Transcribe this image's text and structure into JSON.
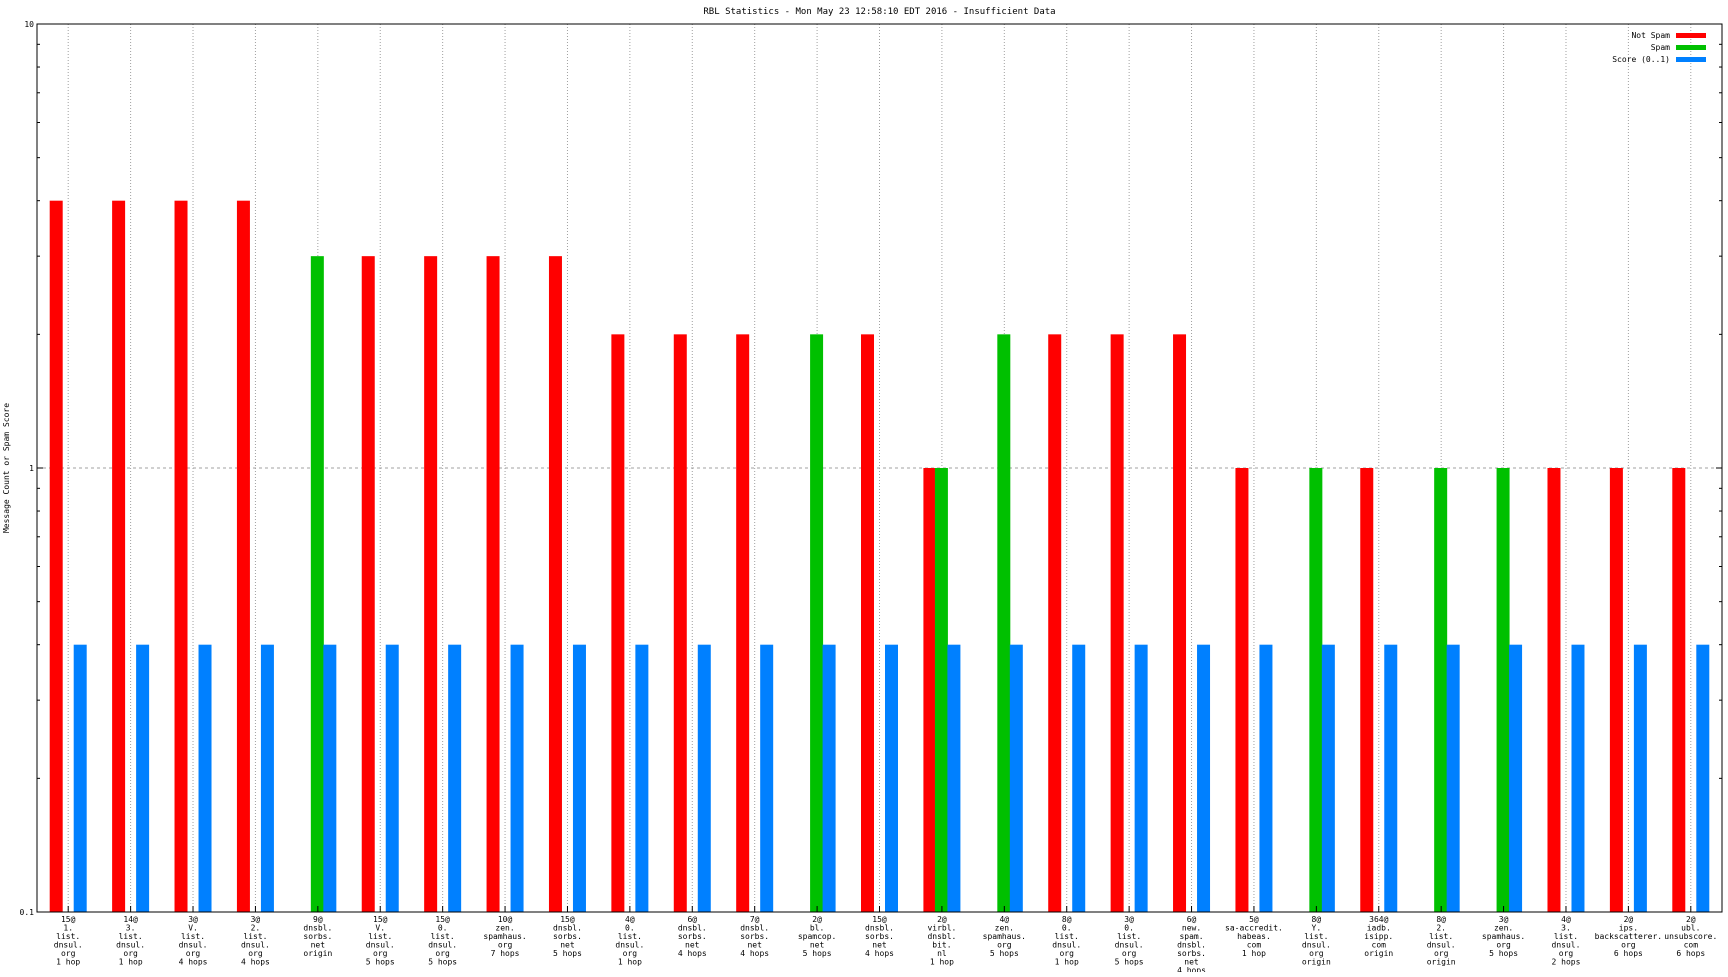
{
  "chart_data": {
    "type": "bar",
    "title": "RBL Statistics - Mon May 23 12:58:10 EDT 2016 - Insufficient Data",
    "ylabel": "Message Count or Spam Score",
    "xlabel": "",
    "yscale": "log",
    "ylim": [
      0.1,
      10
    ],
    "yticks": [
      {
        "value": 0.1,
        "label": "0.1"
      },
      {
        "value": 1,
        "label": "1"
      },
      {
        "value": 10,
        "label": "10"
      }
    ],
    "grid": true,
    "legend_position": "top-right",
    "categories": [
      [
        "15@",
        "1.",
        "list.",
        "dnsul.",
        "org",
        "1 hop"
      ],
      [
        "14@",
        "3.",
        "list.",
        "dnsul.",
        "org",
        "1 hop"
      ],
      [
        "3@",
        "V.",
        "list.",
        "dnsul.",
        "org",
        "4 hops"
      ],
      [
        "3@",
        "2.",
        "list.",
        "dnsul.",
        "org",
        "4 hops"
      ],
      [
        "9@",
        "dnsbl.",
        "sorbs.",
        "net",
        "origin"
      ],
      [
        "15@",
        "V.",
        "list.",
        "dnsul.",
        "org",
        "5 hops"
      ],
      [
        "15@",
        "0.",
        "list.",
        "dnsul.",
        "org",
        "5 hops"
      ],
      [
        "10@",
        "zen.",
        "spamhaus.",
        "org",
        "7 hops"
      ],
      [
        "15@",
        "dnsbl.",
        "sorbs.",
        "net",
        "5 hops"
      ],
      [
        "4@",
        "0.",
        "list.",
        "dnsul.",
        "org",
        "1 hop"
      ],
      [
        "6@",
        "dnsbl.",
        "sorbs.",
        "net",
        "4 hops"
      ],
      [
        "7@",
        "dnsbl.",
        "sorbs.",
        "net",
        "4 hops"
      ],
      [
        "2@",
        "bl.",
        "spamcop.",
        "net",
        "5 hops"
      ],
      [
        "15@",
        "dnsbl.",
        "sorbs.",
        "net",
        "4 hops"
      ],
      [
        "2@",
        "virbl.",
        "dnsbl.",
        "bit.",
        "nl",
        "1 hop"
      ],
      [
        "4@",
        "zen.",
        "spamhaus.",
        "org",
        "5 hops"
      ],
      [
        "8@",
        "0.",
        "list.",
        "dnsul.",
        "org",
        "1 hop"
      ],
      [
        "3@",
        "0.",
        "list.",
        "dnsul.",
        "org",
        "5 hops"
      ],
      [
        "6@",
        "new.",
        "spam.",
        "dnsbl.",
        "sorbs.",
        "net",
        "4 hops"
      ],
      [
        "5@",
        "sa-accredit.",
        "habeas.",
        "com",
        "1 hop"
      ],
      [
        "8@",
        "Y.",
        "list.",
        "dnsul.",
        "org",
        "origin"
      ],
      [
        "364@",
        "iadb.",
        "isipp.",
        "com",
        "origin"
      ],
      [
        "8@",
        "2.",
        "list.",
        "dnsul.",
        "org",
        "origin"
      ],
      [
        "3@",
        "zen.",
        "spamhaus.",
        "org",
        "5 hops"
      ],
      [
        "4@",
        "3.",
        "list.",
        "dnsul.",
        "org",
        "2 hops"
      ],
      [
        "2@",
        "ips.",
        "backscatterer.",
        "org",
        "6 hops"
      ],
      [
        "2@",
        "ubl.",
        "unsubscore.",
        "com",
        "6 hops"
      ]
    ],
    "series": [
      {
        "name": "Not Spam",
        "color": "#ff0000",
        "values": [
          4,
          4,
          4,
          4,
          null,
          3,
          3,
          3,
          3,
          2,
          2,
          2,
          null,
          2,
          1,
          null,
          2,
          2,
          2,
          1,
          null,
          1,
          null,
          null,
          1,
          1,
          1
        ]
      },
      {
        "name": "Spam",
        "color": "#00c000",
        "values": [
          null,
          null,
          null,
          null,
          3,
          null,
          null,
          null,
          null,
          null,
          null,
          null,
          2,
          null,
          1,
          2,
          null,
          null,
          null,
          null,
          1,
          null,
          1,
          1,
          null,
          null,
          null
        ]
      },
      {
        "name": "Score (0..1)",
        "color": "#0080ff",
        "values": [
          0.4,
          0.4,
          0.4,
          0.4,
          0.4,
          0.4,
          0.4,
          0.4,
          0.4,
          0.4,
          0.4,
          0.4,
          0.4,
          0.4,
          0.4,
          0.4,
          0.4,
          0.4,
          0.4,
          0.4,
          0.4,
          0.4,
          0.4,
          0.4,
          0.4,
          0.4,
          0.4
        ]
      }
    ]
  }
}
